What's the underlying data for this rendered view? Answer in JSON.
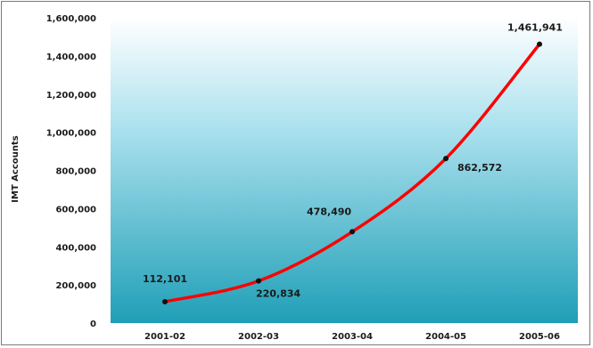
{
  "chart_data": {
    "type": "line",
    "title": "",
    "xlabel": "",
    "ylabel": "IMT Accounts",
    "categories": [
      "2001-02",
      "2002-03",
      "2003-04",
      "2004-05",
      "2005-06"
    ],
    "ylim": [
      0,
      1600000
    ],
    "yticks": [
      "0",
      "200,000",
      "400,000",
      "600,000",
      "800,000",
      "1,000,000",
      "1,200,000",
      "1,400,000",
      "1,600,000"
    ],
    "series": [
      {
        "values": [
          112101,
          220834,
          478490,
          862572,
          1461941
        ],
        "labels": [
          "112,101",
          "220,834",
          "478,490",
          "862,572",
          "1,461,941"
        ],
        "color": "#ff0000"
      }
    ],
    "grid": false,
    "legend": "none",
    "background": "gradient white-to-teal"
  }
}
